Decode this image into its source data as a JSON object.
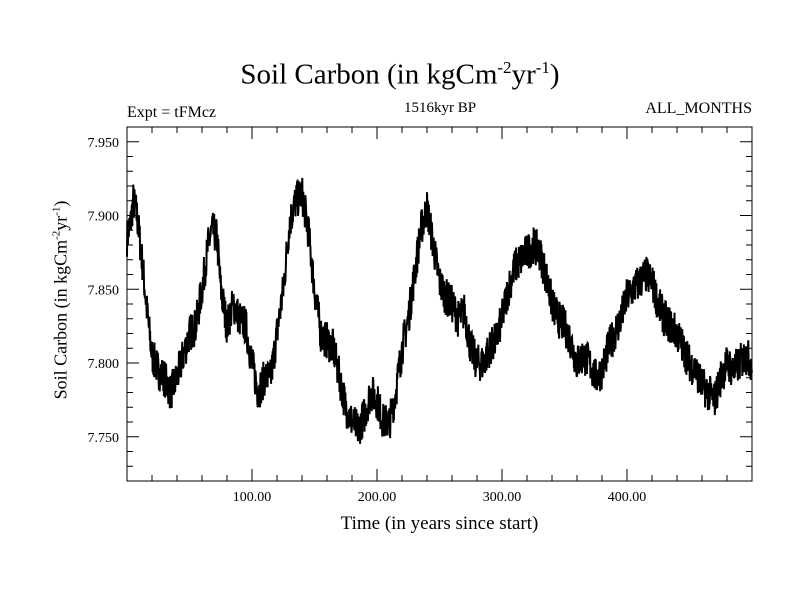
{
  "chart_data": {
    "type": "line",
    "title": "Soil Carbon (in kgCm",
    "title_sup1": "-2",
    "title_mid": "yr",
    "title_sup2": "-1",
    "title_end": ")",
    "left_label": "Expt = tFMcz",
    "center_label": "1516kyr BP",
    "right_label": "ALL_MONTHS",
    "xlabel": "Time (in years since start)",
    "ylabel": "Soil Carbon (in kgCm",
    "ylabel_sup1": "-2",
    "ylabel_mid": "yr",
    "ylabel_sup2": "-1",
    "ylabel_end": ")",
    "xlim": [
      0,
      500
    ],
    "ylim": [
      7.72,
      7.96
    ],
    "x_ticks": [
      100,
      200,
      300,
      400
    ],
    "x_tick_labels": [
      "100.00",
      "200.00",
      "300.00",
      "400.00"
    ],
    "y_ticks": [
      7.75,
      7.8,
      7.85,
      7.9,
      7.95
    ],
    "y_tick_labels": [
      "7.750",
      "7.800",
      "7.850",
      "7.900",
      "7.950"
    ],
    "series": [
      {
        "color": "#000000",
        "x": [
          0,
          3,
          5,
          8,
          12,
          16,
          20,
          25,
          30,
          35,
          40,
          45,
          50,
          55,
          60,
          65,
          68,
          72,
          75,
          80,
          85,
          90,
          95,
          100,
          105,
          110,
          115,
          120,
          125,
          130,
          135,
          140,
          145,
          150,
          155,
          160,
          165,
          170,
          175,
          180,
          185,
          190,
          195,
          200,
          205,
          210,
          215,
          220,
          225,
          230,
          235,
          240,
          245,
          250,
          255,
          260,
          265,
          270,
          275,
          280,
          285,
          290,
          295,
          300,
          305,
          310,
          315,
          320,
          325,
          330,
          335,
          340,
          345,
          350,
          355,
          360,
          365,
          370,
          375,
          380,
          385,
          390,
          395,
          400,
          405,
          410,
          415,
          420,
          425,
          430,
          435,
          440,
          445,
          450,
          455,
          460,
          465,
          470,
          475,
          480,
          485,
          490,
          495,
          500
        ],
        "values": [
          7.885,
          7.895,
          7.91,
          7.9,
          7.87,
          7.835,
          7.805,
          7.795,
          7.79,
          7.78,
          7.79,
          7.805,
          7.82,
          7.825,
          7.85,
          7.88,
          7.89,
          7.885,
          7.85,
          7.825,
          7.84,
          7.83,
          7.825,
          7.8,
          7.78,
          7.79,
          7.79,
          7.82,
          7.85,
          7.895,
          7.91,
          7.915,
          7.89,
          7.85,
          7.82,
          7.815,
          7.81,
          7.79,
          7.77,
          7.76,
          7.755,
          7.765,
          7.78,
          7.775,
          7.76,
          7.76,
          7.78,
          7.81,
          7.83,
          7.86,
          7.89,
          7.905,
          7.88,
          7.855,
          7.845,
          7.84,
          7.83,
          7.835,
          7.81,
          7.8,
          7.8,
          7.81,
          7.815,
          7.83,
          7.85,
          7.865,
          7.87,
          7.875,
          7.88,
          7.875,
          7.86,
          7.84,
          7.83,
          7.825,
          7.815,
          7.8,
          7.805,
          7.8,
          7.79,
          7.795,
          7.81,
          7.82,
          7.83,
          7.845,
          7.85,
          7.855,
          7.86,
          7.855,
          7.84,
          7.83,
          7.825,
          7.82,
          7.81,
          7.8,
          7.795,
          7.785,
          7.78,
          7.775,
          7.79,
          7.8,
          7.795,
          7.8,
          7.805,
          7.8
        ]
      }
    ]
  }
}
